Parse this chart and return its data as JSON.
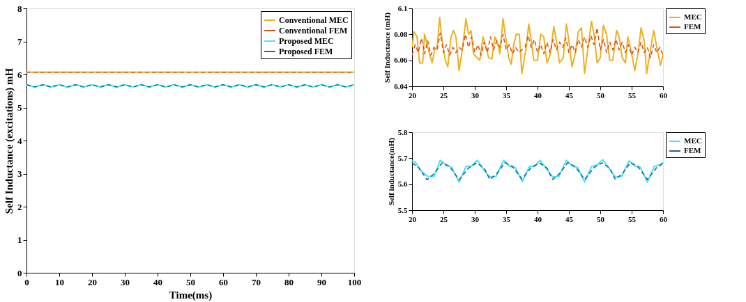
{
  "chart_data": [
    {
      "type": "line",
      "xlabel": "Time(ms)",
      "ylabel": "Self Inductance (excitations) mH",
      "xlim": [
        0,
        100
      ],
      "xticks": [
        0,
        10,
        20,
        30,
        40,
        50,
        60,
        70,
        80,
        90,
        100
      ],
      "ylim": [
        0,
        8
      ],
      "yticks": [
        0,
        1,
        2,
        3,
        4,
        5,
        6,
        7,
        8
      ],
      "grid": false,
      "legend": "top right",
      "series": [
        {
          "name": "Conventional MEC",
          "color": "#edb120",
          "line_style": "solid",
          "x": [
            0,
            10,
            20,
            30,
            40,
            50,
            60,
            70,
            80,
            90,
            100
          ],
          "values": [
            6.07,
            6.07,
            6.07,
            6.07,
            6.07,
            6.07,
            6.07,
            6.07,
            6.07,
            6.07,
            6.07
          ]
        },
        {
          "name": "Conventional FEM",
          "color": "#d95319",
          "line_style": "dashed",
          "x": [
            0,
            10,
            20,
            30,
            40,
            50,
            60,
            70,
            80,
            90,
            100
          ],
          "values": [
            6.07,
            6.07,
            6.07,
            6.07,
            6.07,
            6.07,
            6.07,
            6.07,
            6.07,
            6.07,
            6.07
          ]
        },
        {
          "name": "Proposed MEC",
          "color": "#4de8f5",
          "line_style": "solid",
          "x": [
            0,
            2.5,
            5,
            7.5,
            10,
            12.5,
            15,
            17.5,
            20,
            22.5,
            25,
            27.5,
            30,
            32.5,
            35,
            37.5,
            40,
            42.5,
            45,
            47.5,
            50,
            52.5,
            55,
            57.5,
            60,
            62.5,
            65,
            67.5,
            70,
            72.5,
            75,
            77.5,
            80,
            82.5,
            85,
            87.5,
            90,
            92.5,
            95,
            97.5,
            100
          ],
          "values": [
            5.69,
            5.62,
            5.69,
            5.62,
            5.69,
            5.62,
            5.69,
            5.62,
            5.69,
            5.62,
            5.69,
            5.62,
            5.69,
            5.62,
            5.69,
            5.62,
            5.69,
            5.62,
            5.69,
            5.62,
            5.69,
            5.62,
            5.69,
            5.62,
            5.69,
            5.62,
            5.69,
            5.62,
            5.69,
            5.62,
            5.69,
            5.62,
            5.69,
            5.62,
            5.69,
            5.62,
            5.69,
            5.62,
            5.69,
            5.62,
            5.69
          ]
        },
        {
          "name": "Proposed FEM",
          "color": "#0072bd",
          "line_style": "dashed",
          "x": [
            0,
            2.5,
            5,
            7.5,
            10,
            12.5,
            15,
            17.5,
            20,
            22.5,
            25,
            27.5,
            30,
            32.5,
            35,
            37.5,
            40,
            42.5,
            45,
            47.5,
            50,
            52.5,
            55,
            57.5,
            60,
            62.5,
            65,
            67.5,
            70,
            72.5,
            75,
            77.5,
            80,
            82.5,
            85,
            87.5,
            90,
            92.5,
            95,
            97.5,
            100
          ],
          "values": [
            5.69,
            5.62,
            5.69,
            5.62,
            5.69,
            5.62,
            5.69,
            5.62,
            5.69,
            5.62,
            5.69,
            5.62,
            5.69,
            5.62,
            5.69,
            5.62,
            5.69,
            5.62,
            5.69,
            5.62,
            5.69,
            5.62,
            5.69,
            5.62,
            5.69,
            5.62,
            5.69,
            5.62,
            5.69,
            5.62,
            5.69,
            5.62,
            5.69,
            5.62,
            5.69,
            5.62,
            5.69,
            5.62,
            5.69,
            5.62,
            5.69
          ]
        }
      ]
    },
    {
      "type": "line",
      "ylabel": "Self Inductance (mH)",
      "xlim": [
        20,
        60
      ],
      "xticks": [
        20,
        25,
        30,
        35,
        40,
        45,
        50,
        55,
        60
      ],
      "ylim": [
        6.04,
        6.1
      ],
      "yticks": [
        6.04,
        6.06,
        6.08,
        6.1
      ],
      "grid": false,
      "legend": "top right",
      "series": [
        {
          "name": "MEC",
          "color": "#edb120",
          "line_style": "solid",
          "x": [
            20,
            20.3,
            20.8,
            21.2,
            21.7,
            22,
            22.5,
            22.8,
            23.2,
            23.6,
            24,
            24.4,
            24.8,
            25.3,
            25.7,
            26.2,
            26.6,
            27,
            27.5,
            28,
            28.6,
            29,
            29.4,
            29.8,
            30.4,
            30.8,
            31.3,
            31.8,
            32.2,
            32.7,
            33.2,
            33.7,
            34,
            34.5,
            35,
            35.4,
            35.8,
            36.2,
            36.6,
            37.1,
            37.5,
            38.2,
            38.6,
            39,
            39.4,
            40,
            40.5,
            41,
            41.5,
            42,
            42.6,
            43,
            43.5,
            44.1,
            44.6,
            45,
            45.5,
            46,
            46.5,
            47,
            47.5,
            48,
            48.6,
            49,
            49.5,
            50,
            50.5,
            51,
            51.5,
            52,
            52.6,
            53,
            53.5,
            54,
            54.4,
            55,
            55.5,
            56,
            56.5,
            57,
            57.4,
            58,
            58.5,
            59,
            59.6,
            60
          ],
          "values": [
            6.07,
            6.082,
            6.078,
            6.058,
            6.058,
            6.08,
            6.07,
            6.065,
            6.058,
            6.068,
            6.07,
            6.093,
            6.075,
            6.06,
            6.055,
            6.078,
            6.083,
            6.078,
            6.052,
            6.068,
            6.092,
            6.08,
            6.083,
            6.065,
            6.062,
            6.06,
            6.078,
            6.07,
            6.062,
            6.061,
            6.078,
            6.072,
            6.065,
            6.092,
            6.075,
            6.062,
            6.057,
            6.072,
            6.08,
            6.08,
            6.05,
            6.07,
            6.088,
            6.075,
            6.06,
            6.06,
            6.08,
            6.078,
            6.058,
            6.064,
            6.086,
            6.075,
            6.058,
            6.062,
            6.088,
            6.075,
            6.055,
            6.065,
            6.082,
            6.085,
            6.05,
            6.068,
            6.09,
            6.08,
            6.058,
            6.062,
            6.087,
            6.08,
            6.06,
            6.06,
            6.083,
            6.078,
            6.062,
            6.058,
            6.078,
            6.065,
            6.052,
            6.065,
            6.085,
            6.075,
            6.05,
            6.068,
            6.083,
            6.07,
            6.056,
            6.065
          ]
        },
        {
          "name": "FEM",
          "color": "#d95319",
          "line_style": "dashed",
          "x": [
            20,
            20.5,
            21,
            21.5,
            22,
            22.5,
            23,
            23.5,
            24,
            24.5,
            25,
            25.5,
            26,
            26.5,
            27,
            27.5,
            28,
            28.5,
            29,
            29.5,
            30,
            30.5,
            31,
            31.5,
            32,
            32.5,
            33,
            33.5,
            34,
            34.5,
            35,
            35.5,
            36,
            36.5,
            37,
            37.5,
            38,
            38.5,
            39,
            39.5,
            40,
            40.5,
            41,
            41.5,
            42,
            42.5,
            43,
            43.5,
            44,
            44.5,
            45,
            45.5,
            46,
            46.5,
            47,
            47.5,
            48,
            48.5,
            49,
            49.5,
            50,
            50.5,
            51,
            51.5,
            52,
            52.5,
            53,
            53.5,
            54,
            54.5,
            55,
            55.5,
            56,
            56.5,
            57,
            57.5,
            58,
            58.5,
            59,
            59.5,
            60
          ],
          "values": [
            6.064,
            6.072,
            6.066,
            6.077,
            6.065,
            6.075,
            6.064,
            6.07,
            6.068,
            6.081,
            6.066,
            6.072,
            6.064,
            6.07,
            6.066,
            6.07,
            6.068,
            6.08,
            6.07,
            6.078,
            6.066,
            6.072,
            6.064,
            6.074,
            6.066,
            6.078,
            6.068,
            6.075,
            6.07,
            6.08,
            6.068,
            6.072,
            6.065,
            6.07,
            6.066,
            6.068,
            6.07,
            6.079,
            6.07,
            6.076,
            6.066,
            6.072,
            6.065,
            6.074,
            6.066,
            6.076,
            6.068,
            6.074,
            6.07,
            6.077,
            6.066,
            6.072,
            6.066,
            6.076,
            6.07,
            6.078,
            6.07,
            6.079,
            6.072,
            6.085,
            6.068,
            6.076,
            6.066,
            6.074,
            6.068,
            6.076,
            6.068,
            6.074,
            6.066,
            6.072,
            6.064,
            6.07,
            6.066,
            6.074,
            6.066,
            6.07,
            6.062,
            6.072,
            6.066,
            6.07,
            6.064
          ]
        }
      ]
    },
    {
      "type": "line",
      "ylabel": "Self inductance(mH)",
      "xlim": [
        20,
        60
      ],
      "xticks": [
        20,
        25,
        30,
        35,
        40,
        45,
        50,
        55,
        60
      ],
      "ylim": [
        5.5,
        5.8
      ],
      "yticks": [
        5.5,
        5.6,
        5.7,
        5.8
      ],
      "grid": false,
      "legend": "top right",
      "series": [
        {
          "name": "MEC",
          "color": "#3ee6f2",
          "line_style": "solid",
          "x": [
            20,
            20.5,
            21.5,
            22.5,
            23.5,
            24.5,
            25.5,
            26.3,
            27.5,
            28.6,
            29.5,
            30.4,
            31.3,
            32.3,
            33.4,
            34.6,
            35.6,
            36.4,
            37.6,
            38.7,
            39.5,
            40.4,
            41.4,
            42.4,
            43.4,
            44.6,
            45.6,
            46.4,
            47.5,
            48.6,
            49.5,
            50.4,
            51.4,
            52.4,
            53.4,
            54.6,
            55.6,
            56.4,
            57.5,
            58.6,
            59.5,
            60
          ],
          "values": [
            5.69,
            5.685,
            5.65,
            5.63,
            5.63,
            5.692,
            5.672,
            5.665,
            5.608,
            5.668,
            5.67,
            5.692,
            5.66,
            5.628,
            5.63,
            5.692,
            5.668,
            5.665,
            5.61,
            5.668,
            5.668,
            5.692,
            5.66,
            5.628,
            5.63,
            5.692,
            5.668,
            5.665,
            5.608,
            5.668,
            5.675,
            5.694,
            5.66,
            5.628,
            5.63,
            5.69,
            5.668,
            5.665,
            5.608,
            5.668,
            5.675,
            5.685
          ]
        },
        {
          "name": "FEM",
          "color": "#1f5fa0",
          "line_style": "dashed",
          "x": [
            20,
            21,
            22.4,
            23.5,
            24.8,
            26,
            27.5,
            29,
            30.3,
            31.5,
            32.4,
            33.5,
            34.8,
            36,
            37.5,
            39,
            40.3,
            41.5,
            42.4,
            43.5,
            44.8,
            46,
            47.5,
            49,
            50.3,
            51.5,
            52.4,
            53.5,
            54.8,
            56,
            57.5,
            59,
            60
          ],
          "values": [
            5.682,
            5.665,
            5.617,
            5.64,
            5.682,
            5.668,
            5.617,
            5.662,
            5.682,
            5.662,
            5.618,
            5.64,
            5.683,
            5.668,
            5.62,
            5.664,
            5.682,
            5.662,
            5.618,
            5.64,
            5.683,
            5.668,
            5.618,
            5.664,
            5.682,
            5.662,
            5.618,
            5.64,
            5.683,
            5.668,
            5.618,
            5.664,
            5.68
          ]
        }
      ]
    }
  ]
}
